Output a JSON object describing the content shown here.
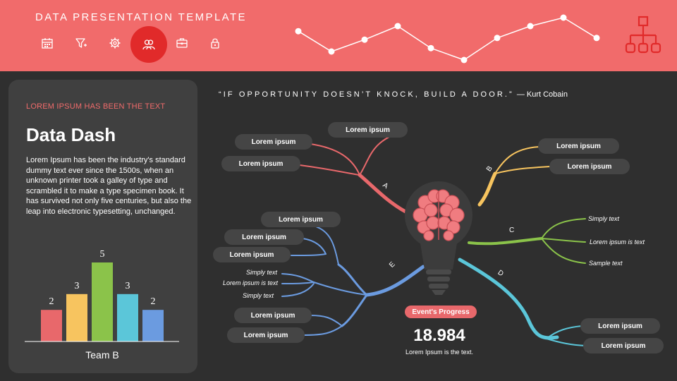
{
  "header": {
    "title": "DATA PRESENTATION TEMPLATE",
    "nav_icons": [
      "calendar-icon",
      "filter-icon",
      "gear-icon",
      "team-icon",
      "briefcase-icon",
      "lock-icon"
    ],
    "active_icon": "team-icon",
    "corner_icon": "org-chart-icon"
  },
  "sidebar": {
    "kicker": "LOREM IPSUM HAS BEEN THE TEXT",
    "title": "Data Dash",
    "body": "Lorem Ipsum has been the industry's standard dummy text ever since the 1500s, when an unknown printer took a galley of type and scrambled it to make a type specimen book. It has survived not only five centuries, but also the leap into electronic typesetting,  unchanged."
  },
  "quote": {
    "text": "“IF OPPORTUNITY DOESN’T KNOCK, BUILD A DOOR.”",
    "author": "— Kurt Cobain"
  },
  "mindmap": {
    "branches": [
      {
        "label": "A",
        "color": "#e8686b",
        "items": [
          "Lorem ipsum",
          "Lorem ipsum",
          "Lorem ipsum"
        ]
      },
      {
        "label": "B",
        "color": "#f7c45f",
        "items": [
          "Lorem ipsum",
          "Lorem ipsum"
        ]
      },
      {
        "label": "C",
        "color": "#8bc34a",
        "items": [
          "Simply text",
          "Lorem ipsum is text",
          "Sample text"
        ]
      },
      {
        "label": "D",
        "color": "#5bc6d9",
        "items": [
          "Lorem ipsum",
          "Lorem ipsum"
        ]
      },
      {
        "label": "E",
        "color": "#6b9be0",
        "items": [
          "Lorem ipsum",
          "Lorem ipsum",
          "Lorem ipsum",
          "Simply text",
          "Lorem ipsum is text",
          "Simply text",
          "Lorem ipsum",
          "Lorem ipsum"
        ]
      }
    ]
  },
  "stat": {
    "badge": "Event's Progress",
    "value": "18.984",
    "caption": "Lorem Ipsum is the text."
  },
  "chart_data": [
    {
      "type": "bar",
      "categories": [
        "",
        "",
        "",
        "",
        ""
      ],
      "values": [
        2,
        3,
        5,
        3,
        2
      ],
      "colors": [
        "#e8686b",
        "#f7c45f",
        "#8bc34a",
        "#5bc6d9",
        "#6b9be0"
      ],
      "title": "",
      "xlabel": "Team B",
      "ylabel": "",
      "ylim": [
        0,
        5
      ],
      "data_labels": true,
      "grid": false
    },
    {
      "type": "line",
      "x": [
        1,
        2,
        3,
        4,
        5,
        6,
        7,
        8,
        9,
        10
      ],
      "values": [
        4.4,
        2.0,
        3.4,
        5.0,
        2.4,
        1.0,
        3.6,
        5.0,
        6.0,
        3.6
      ],
      "color": "#ffffff",
      "title": "",
      "xlabel": "",
      "ylabel": "",
      "ylim": [
        0,
        7
      ],
      "grid": false
    }
  ]
}
